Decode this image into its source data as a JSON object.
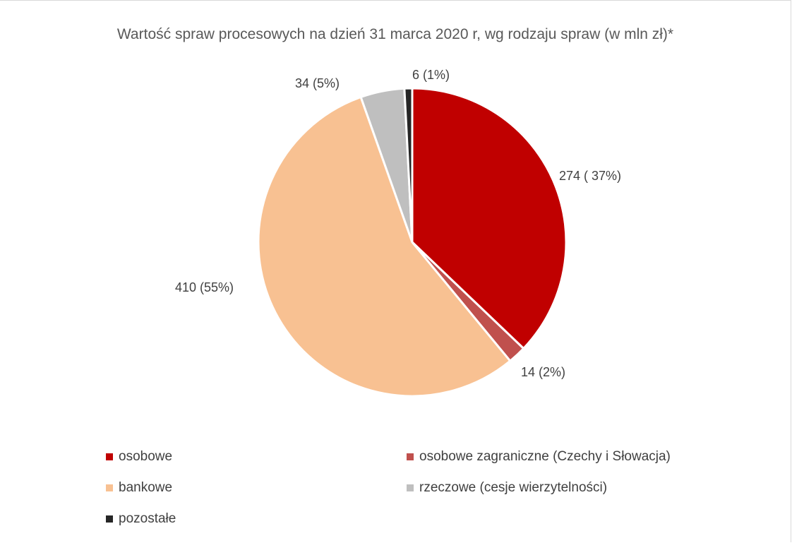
{
  "chart_data": {
    "type": "pie",
    "title": "Wartość spraw procesowych na dzień 31 marca 2020 r, wg rodzaju spraw (w mln zł)*",
    "categories": [
      "osobowe",
      "osobowe zagraniczne (Czechy i Słowacja)",
      "bankowe",
      "rzeczowe (cesje wierzytelności)",
      "pozostałe"
    ],
    "values": [
      274,
      14,
      410,
      34,
      6
    ],
    "data_labels": [
      "274 ( 37%)",
      "14 (2%)",
      "410 (55%)",
      "34 (5%)",
      "6 (1%)"
    ],
    "colors": [
      "#c00000",
      "#c0504d",
      "#f8c192",
      "#bfbfbf",
      "#262626"
    ],
    "legend_position": "bottom"
  }
}
